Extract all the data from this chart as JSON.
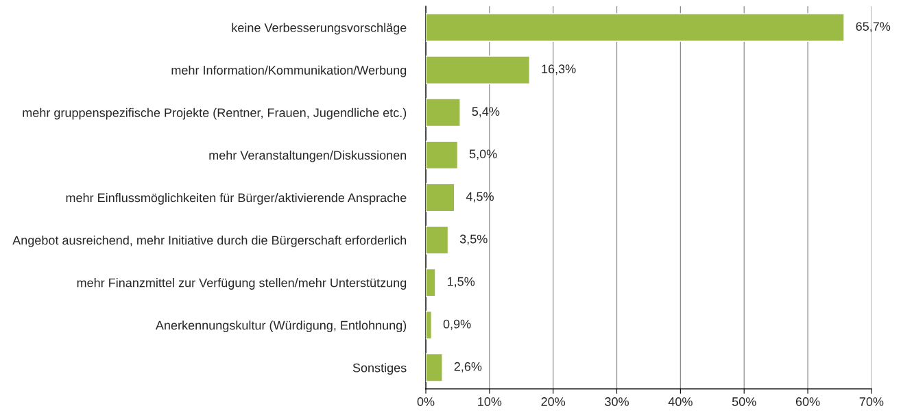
{
  "chart_data": {
    "type": "bar",
    "orientation": "horizontal",
    "categories": [
      "keine Verbesserungsvorschläge",
      "mehr Information/Kommunikation/Werbung",
      "mehr gruppenspezifische Projekte (Rentner, Frauen, Jugendliche etc.)",
      "mehr Veranstaltungen/Diskussionen",
      "mehr Einflussmöglichkeiten für Bürger/aktivierende Ansprache",
      "Angebot ausreichend, mehr Initiative durch die Bürgerschaft erforderlich",
      "mehr Finanzmittel zur Verfügung stellen/mehr Unterstützung",
      "Anerkennungskultur (Würdigung, Entlohnung)",
      "Sonstiges"
    ],
    "values": [
      65.7,
      16.3,
      5.4,
      5.0,
      4.5,
      3.5,
      1.5,
      0.9,
      2.6
    ],
    "value_labels": [
      "65,7%",
      "16,3%",
      "5,4%",
      "5,0%",
      "4,5%",
      "3,5%",
      "1,5%",
      "0,9%",
      "2,6%"
    ],
    "color": "#9bbb45",
    "xlim": [
      0,
      70
    ],
    "xticks": [
      {
        "value": 0,
        "label": "0%"
      },
      {
        "value": 10,
        "label": "10%"
      },
      {
        "value": 20,
        "label": "20%"
      },
      {
        "value": 30,
        "label": "30%"
      },
      {
        "value": 40,
        "label": "40%"
      },
      {
        "value": 50,
        "label": "50%"
      },
      {
        "value": 60,
        "label": "60%"
      },
      {
        "value": 70,
        "label": "70%"
      }
    ],
    "grid": "x",
    "legend": false
  }
}
